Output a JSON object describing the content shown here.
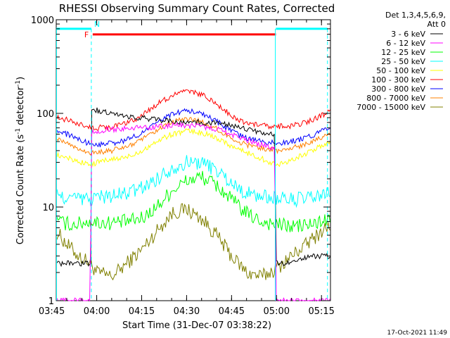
{
  "chart_data": {
    "type": "line",
    "title": "RHESSI Observing Summary Count Rates, Corrected",
    "xlabel": "Start Time (31-Dec-07 03:38:22)",
    "ylabel_parts": [
      "Corrected Count Rate (s",
      "-1",
      " detector",
      "-1",
      ")"
    ],
    "y_scale": "log",
    "ylim": [
      1,
      1000
    ],
    "y_ticks": [
      {
        "value": 1,
        "label": "1"
      },
      {
        "value": 10,
        "label": "10"
      },
      {
        "value": 100,
        "label": "100"
      },
      {
        "value": 1000,
        "label": "1000"
      }
    ],
    "xlim_minutes": [
      226.5,
      318.0
    ],
    "x_ticks": [
      {
        "minutes": 225,
        "label": "03:45"
      },
      {
        "minutes": 240,
        "label": "04:00"
      },
      {
        "minutes": 255,
        "label": "04:15"
      },
      {
        "minutes": 270,
        "label": "04:30"
      },
      {
        "minutes": 285,
        "label": "04:45"
      },
      {
        "minutes": 300,
        "label": "05:00"
      },
      {
        "minutes": 315,
        "label": "05:15"
      }
    ],
    "legend_header": [
      "Det 1,3,4,5,6,9,",
      "Att 0"
    ],
    "legend_placement": "right",
    "timestamp": "17-Oct-2021 11:49",
    "flags": {
      "top_line_value": 800,
      "night_marker": "N",
      "flare_marker": "F",
      "flare_color": "#ff0000",
      "cyan_color": "#00ffff",
      "cyan_segments_minutes": [
        [
          226.5,
          238.2
        ],
        [
          299.8,
          317.0
        ]
      ],
      "flare_segment_minutes": [
        238.2,
        299.8
      ],
      "cyan_vlines_solid_minutes": [
        226.6,
        299.6
      ],
      "cyan_vlines_dashed_minutes": [
        238.2,
        317.0
      ]
    },
    "series": [
      {
        "name": "3 - 6 keV",
        "color": "#000000",
        "x": [
          226.5,
          232,
          238,
          238.3,
          242,
          248,
          254,
          260,
          265,
          270,
          275,
          280,
          285,
          290,
          295,
          299.5,
          299.7,
          305,
          312,
          318
        ],
        "y": [
          2.5,
          2.5,
          2.5,
          110,
          105,
          95,
          90,
          86,
          82,
          80,
          80,
          78,
          75,
          68,
          62,
          58,
          2.5,
          2.5,
          3,
          3
        ]
      },
      {
        "name": "6 - 12 keV",
        "color": "#ff00ff",
        "x": [
          226.5,
          236,
          237.8,
          238.3,
          242,
          248,
          254,
          260,
          265,
          270,
          275,
          280,
          285,
          290,
          295,
          299.5,
          299.7,
          305,
          312,
          318
        ],
        "y": [
          1,
          1,
          1,
          64,
          66,
          68,
          70,
          72,
          74,
          74,
          72,
          68,
          60,
          52,
          46,
          42,
          1,
          1,
          1,
          1
        ]
      },
      {
        "name": "12 - 25 keV",
        "color": "#00ff00",
        "x": [
          226.5,
          232,
          238,
          240,
          245,
          250,
          255,
          260,
          265,
          270,
          275,
          280,
          285,
          290,
          295,
          300,
          305,
          312,
          318
        ],
        "y": [
          7,
          6.5,
          7,
          6.8,
          6.8,
          7,
          7.5,
          10,
          15,
          19,
          21,
          17,
          12,
          8.5,
          7,
          6.5,
          6.2,
          6.5,
          7.5
        ]
      },
      {
        "name": "25 - 50 keV",
        "color": "#00ffff",
        "x": [
          226.5,
          232,
          238,
          240,
          245,
          250,
          255,
          260,
          265,
          270,
          275,
          280,
          285,
          290,
          295,
          300,
          305,
          312,
          318
        ],
        "y": [
          13,
          12.5,
          12,
          13,
          13,
          14,
          16,
          20,
          26,
          30,
          30,
          25,
          18,
          14,
          13,
          12.5,
          12,
          12.5,
          14
        ]
      },
      {
        "name": "50 - 100 keV",
        "color": "#ffff00",
        "x": [
          226.5,
          232,
          238,
          240,
          245,
          250,
          255,
          260,
          265,
          270,
          275,
          280,
          285,
          290,
          295,
          300,
          305,
          312,
          318
        ],
        "y": [
          36,
          32,
          28,
          30,
          32,
          34,
          40,
          50,
          60,
          65,
          62,
          55,
          45,
          38,
          33,
          28,
          32,
          40,
          50
        ]
      },
      {
        "name": "100 - 300 keV",
        "color": "#ff0000",
        "x": [
          226.5,
          230,
          234,
          238,
          240,
          245,
          250,
          255,
          260,
          265,
          270,
          275,
          280,
          285,
          290,
          295,
          300,
          305,
          310,
          315,
          318
        ],
        "y": [
          92,
          85,
          78,
          72,
          70,
          72,
          78,
          95,
          125,
          155,
          170,
          160,
          125,
          95,
          78,
          74,
          72,
          74,
          80,
          95,
          105
        ]
      },
      {
        "name": "300 - 800 keV",
        "color": "#0000ff",
        "x": [
          226.5,
          230,
          234,
          238,
          240,
          245,
          250,
          255,
          260,
          265,
          270,
          275,
          280,
          285,
          290,
          295,
          300,
          305,
          310,
          315,
          318
        ],
        "y": [
          65,
          60,
          52,
          47,
          46,
          48,
          52,
          62,
          78,
          98,
          108,
          100,
          82,
          64,
          54,
          50,
          48,
          50,
          55,
          64,
          70
        ]
      },
      {
        "name": "800 - 7000 keV",
        "color": "#ff8000",
        "x": [
          226.5,
          230,
          234,
          238,
          240,
          245,
          250,
          255,
          260,
          265,
          270,
          275,
          280,
          285,
          290,
          295,
          300,
          305,
          310,
          315,
          318
        ],
        "y": [
          55,
          48,
          42,
          38,
          38,
          40,
          44,
          52,
          65,
          80,
          88,
          82,
          68,
          54,
          46,
          43,
          40,
          42,
          48,
          56,
          62
        ]
      },
      {
        "name": "7000 - 15000 keV",
        "color": "#808000",
        "x": [
          226.5,
          230,
          234,
          238,
          240,
          245,
          250,
          255,
          260,
          265,
          270,
          275,
          280,
          285,
          290,
          295,
          300,
          305,
          310,
          315,
          318
        ],
        "y": [
          5.5,
          4,
          3,
          2.5,
          2,
          1.8,
          2.5,
          3.5,
          5.5,
          8.5,
          9.5,
          7.5,
          5,
          3,
          2,
          1.8,
          2.2,
          3,
          4,
          5.5,
          6.5
        ]
      }
    ]
  }
}
